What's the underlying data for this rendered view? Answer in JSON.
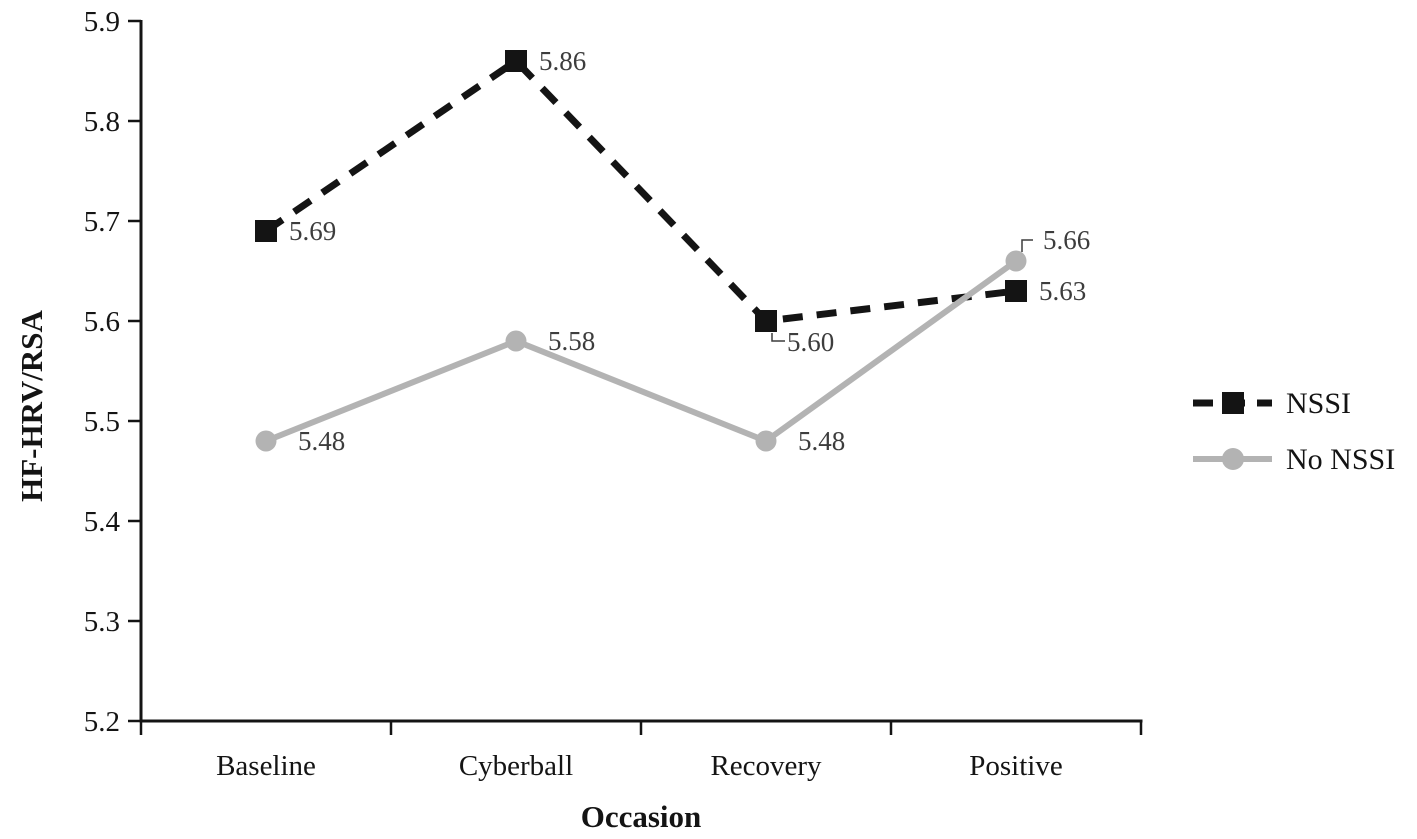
{
  "chart_data": {
    "type": "line",
    "title": "",
    "xlabel": "Occasion",
    "ylabel": "HF-HRV/RSA",
    "categories": [
      "Baseline",
      "Cyberball",
      "Recovery",
      "Positive"
    ],
    "series": [
      {
        "name": "NSSI",
        "values": [
          5.69,
          5.86,
          5.6,
          5.63
        ],
        "point_labels": [
          "5.69",
          "5.86",
          "5.60",
          "5.63"
        ],
        "label_placement": [
          "right",
          "right",
          "below-leader",
          "right"
        ],
        "color": "#141414",
        "line_style": "dashed",
        "marker": "square"
      },
      {
        "name": "No NSSI",
        "values": [
          5.48,
          5.58,
          5.48,
          5.66
        ],
        "point_labels": [
          "5.48",
          "5.58",
          "5.48",
          "5.66"
        ],
        "label_placement": [
          "right",
          "right",
          "right",
          "above-leader"
        ],
        "color": "#b3b3b3",
        "line_style": "solid",
        "marker": "circle"
      }
    ],
    "ylim": [
      5.2,
      5.9
    ],
    "ytick_step": 0.1,
    "yticks": [
      "5.2",
      "5.3",
      "5.4",
      "5.5",
      "5.6",
      "5.7",
      "5.8",
      "5.9"
    ],
    "grid": false,
    "legend_position": "right",
    "axis_color": "#141414",
    "data_label_color": "#3d3d3d"
  }
}
